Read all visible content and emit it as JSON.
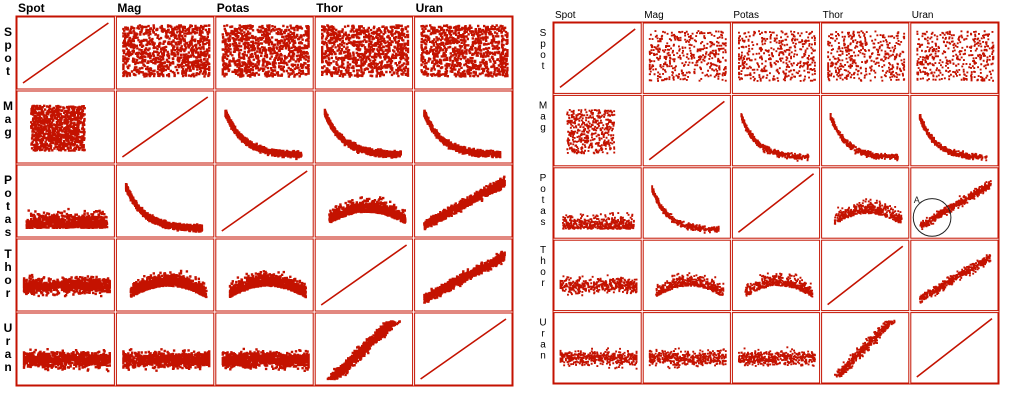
{
  "colors": {
    "point": "#c41200",
    "frame": "#c41200",
    "label": "#000000",
    "background": "#ffffff"
  },
  "chart_data": [
    {
      "type": "scatter",
      "variant": "dense",
      "variables": [
        "Spot",
        "Mag",
        "Potas",
        "Thor",
        "Uran"
      ],
      "row_labels": [
        "Spot",
        "Mag",
        "Potas",
        "Thor",
        "Uran"
      ],
      "diagonal": "identity-line",
      "grid": true,
      "annotations": []
    },
    {
      "type": "scatter",
      "variant": "sparse",
      "variables": [
        "Spot",
        "Mag",
        "Potas",
        "Thor",
        "Uran"
      ],
      "row_labels": [
        "Spot",
        "Mag",
        "Potas",
        "Thor",
        "Uran"
      ],
      "diagonal": "identity-line",
      "grid": true,
      "annotations": [
        {
          "text": "A",
          "cell_row": "Potas",
          "cell_col": "Uran",
          "shape": "circle"
        }
      ]
    }
  ]
}
